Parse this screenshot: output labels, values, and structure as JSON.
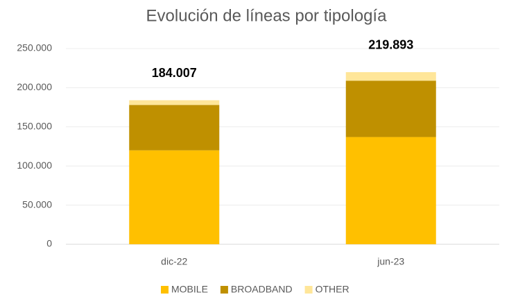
{
  "chart_data": {
    "type": "stacked_bar",
    "title": "Evolución de líneas por tipología",
    "categories": [
      "dic-22",
      "jun-23"
    ],
    "series": [
      {
        "name": "MOBILE",
        "color": "#ffc000",
        "values": [
          120000,
          137000
        ]
      },
      {
        "name": "BROADBAND",
        "color": "#bf9000",
        "values": [
          58000,
          72000
        ]
      },
      {
        "name": "OTHER",
        "color": "#ffe699",
        "values": [
          6007,
          10893
        ]
      }
    ],
    "total_values": [
      184007,
      219893
    ],
    "total_value_labels": [
      "184.007",
      "219.893"
    ],
    "ylim": [
      0,
      250000
    ],
    "yticks": [
      0,
      {
        "value": 50000,
        "label": "50.000"
      },
      {
        "value": 100000,
        "label": "100.000"
      },
      {
        "value": 150000,
        "label": "150.000"
      },
      {
        "value": 200000,
        "label": "200.000"
      },
      {
        "value": 250000,
        "label": "250.000"
      }
    ],
    "grid": true,
    "legend": "bottom"
  }
}
